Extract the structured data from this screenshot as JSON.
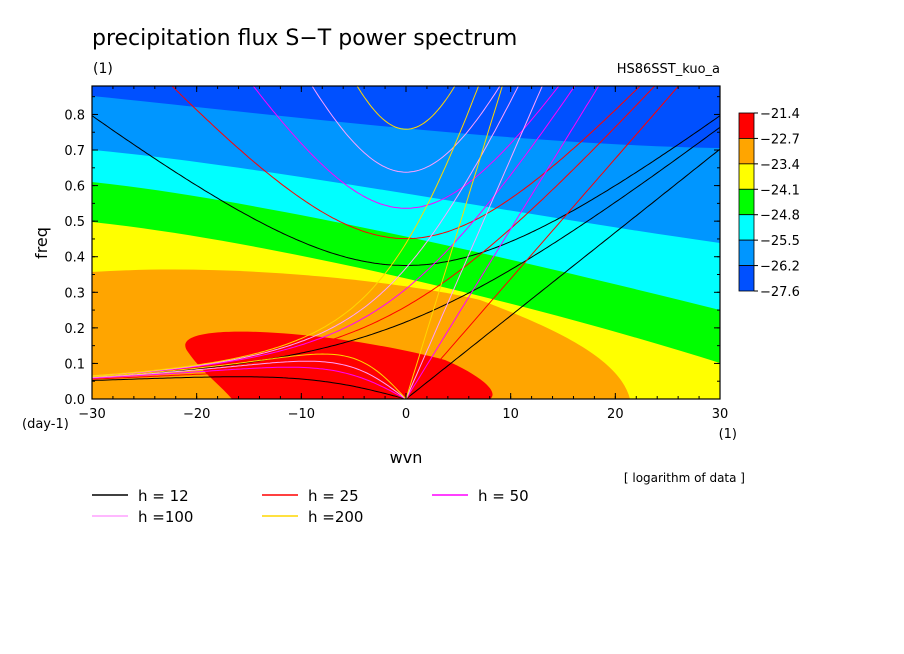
{
  "header": {
    "title": "precipitation flux S−T power spectrum",
    "units": "(1)",
    "run_name": "HS86SST_kuo_a"
  },
  "chart_data": {
    "type": "contour",
    "xlabel": "wvn",
    "ylabel": "freq",
    "x_unit": "(1)",
    "y_unit": "(day-1)",
    "xlim": [
      -30,
      30
    ],
    "ylim": [
      0,
      0.88
    ],
    "x_ticks": [
      -30,
      -20,
      -10,
      0,
      10,
      20,
      30
    ],
    "y_ticks": [
      0.0,
      0.1,
      0.2,
      0.3,
      0.4,
      0.5,
      0.6,
      0.7,
      0.8
    ],
    "note": "[ logarithm of data ]",
    "colorbar": {
      "labels": [
        "-21.4",
        "-22.7",
        "-23.4",
        "-24.1",
        "-24.8",
        "-25.5",
        "-26.2",
        "-27.6"
      ],
      "colors": [
        "#ff0000",
        "#ffa500",
        "#ffff00",
        "#00ff00",
        "#00ffff",
        "#0096ff",
        "#0050ff"
      ]
    },
    "filled_bands": [
      {
        "color": "#0050ff",
        "range": "< -26.2"
      },
      {
        "color": "#0096ff",
        "range": "-26.2 to -25.5"
      },
      {
        "color": "#00ffff",
        "range": "-25.5 to -24.8"
      },
      {
        "color": "#00ff00",
        "range": "-24.8 to -24.1"
      },
      {
        "color": "#ffff00",
        "range": "-24.1 to -23.4"
      },
      {
        "color": "#ffa500",
        "range": "-23.4 to -22.7"
      },
      {
        "color": "#ff0000",
        "range": "> -22.7"
      }
    ],
    "dispersion_curves": [
      {
        "name": "h = 12",
        "h": 12,
        "color": "#000000"
      },
      {
        "name": "h = 25",
        "h": 25,
        "color": "#ff0000"
      },
      {
        "name": "h = 50",
        "h": 50,
        "color": "#ff00ff"
      },
      {
        "name": "h =100",
        "h": 100,
        "color": "#ffa0ff"
      },
      {
        "name": "h =200",
        "h": 200,
        "color": "#ffd700"
      }
    ]
  }
}
